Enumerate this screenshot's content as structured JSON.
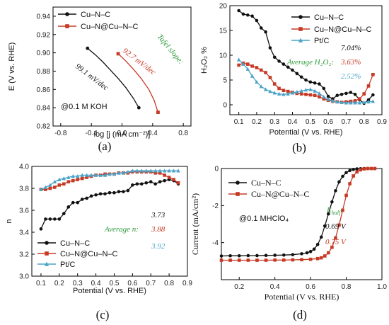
{
  "colors": {
    "cu_n_c": "#111111",
    "cu_n_cu_n_c": "#c63a26",
    "pt_c": "#4aa3c6",
    "tafel_label": "#2e9a3a",
    "average_label": "#2e9a3a",
    "ehalf_label": "#2e9a3a"
  },
  "panel_labels": [
    "(a)",
    "(b)",
    "(c)",
    "(d)"
  ],
  "chart_data": [
    {
      "panel": "(a)",
      "type": "line",
      "xlabel": "log [j (mA cm⁻²)]",
      "ylabel": "E (V vs. RHE)",
      "xlim": [
        -0.9,
        0.9
      ],
      "ylim": [
        0.82,
        0.95
      ],
      "xticks": [
        "-0.8",
        "-0.4",
        "0.0",
        "0.4",
        "0.8"
      ],
      "yticks": [
        "0.82",
        "0.84",
        "0.86",
        "0.88",
        "0.90",
        "0.92",
        "0.94"
      ],
      "legend": [
        "Cu–N–C",
        "Cu–N@Cu–N–C"
      ],
      "legend_position": "top-left",
      "note": "@0.1 M KOH",
      "annotation_title": "Tafel slope:",
      "annotations": [
        "99.1 mV/dec",
        "92.7 mV/dec"
      ],
      "series": [
        {
          "name": "Cu–N–C",
          "x": [
            -0.45,
            -0.35,
            -0.25,
            -0.15,
            -0.05,
            0.05,
            0.15,
            0.22
          ],
          "y": [
            0.905,
            0.898,
            0.89,
            0.881,
            0.872,
            0.862,
            0.85,
            0.84
          ]
        },
        {
          "name": "Cu–N@Cu–N–C",
          "x": [
            -0.05,
            0.05,
            0.15,
            0.25,
            0.35,
            0.42,
            0.47
          ],
          "y": [
            0.899,
            0.891,
            0.882,
            0.872,
            0.86,
            0.848,
            0.835
          ]
        }
      ]
    },
    {
      "panel": "(b)",
      "type": "line",
      "xlabel": "Potential (V vs. RHE)",
      "ylabel": "H₂O₂ %",
      "xlim": [
        0.05,
        0.9
      ],
      "ylim": [
        -2,
        20
      ],
      "xticks": [
        "0.1",
        "0.2",
        "0.3",
        "0.4",
        "0.5",
        "0.6",
        "0.7",
        "0.8",
        "0.9"
      ],
      "yticks": [
        "0",
        "5",
        "10",
        "15",
        "20"
      ],
      "legend": [
        "Cu–N–C",
        "Cu–N@Cu–N–C",
        "Pt/C"
      ],
      "legend_position": "top-right",
      "annotation_title": "Average H₂O₂:",
      "annotations": [
        "7.04%",
        "3.63%",
        "2.52%"
      ],
      "series": [
        {
          "name": "Cu–N–C",
          "x": [
            0.1,
            0.125,
            0.15,
            0.175,
            0.2,
            0.225,
            0.25,
            0.275,
            0.3,
            0.325,
            0.35,
            0.375,
            0.4,
            0.425,
            0.45,
            0.475,
            0.5,
            0.525,
            0.55,
            0.575,
            0.6,
            0.625,
            0.65,
            0.675,
            0.7,
            0.725,
            0.75,
            0.775,
            0.8,
            0.825,
            0.85
          ],
          "y": [
            19.0,
            18.3,
            18.1,
            17.9,
            17.0,
            15.5,
            14.7,
            11.5,
            9.6,
            8.8,
            8.2,
            7.6,
            7.0,
            6.3,
            5.6,
            5.0,
            4.6,
            4.4,
            4.2,
            3.3,
            1.7,
            1.2,
            1.9,
            2.1,
            2.3,
            2.5,
            2.1,
            1.0,
            0.3,
            1.0,
            2.0
          ]
        },
        {
          "name": "Cu–N@Cu–N–C",
          "x": [
            0.1,
            0.125,
            0.15,
            0.175,
            0.2,
            0.225,
            0.25,
            0.275,
            0.3,
            0.325,
            0.35,
            0.375,
            0.4,
            0.425,
            0.45,
            0.475,
            0.5,
            0.525,
            0.55,
            0.575,
            0.6,
            0.625,
            0.65,
            0.675,
            0.7,
            0.725,
            0.75,
            0.775,
            0.8,
            0.825,
            0.85
          ],
          "y": [
            8.0,
            8.4,
            8.2,
            7.8,
            7.5,
            7.0,
            6.5,
            5.5,
            4.2,
            3.3,
            2.9,
            2.7,
            2.5,
            2.3,
            2.2,
            2.1,
            2.0,
            1.9,
            1.6,
            1.2,
            0.9,
            0.7,
            0.6,
            0.5,
            0.6,
            0.7,
            0.8,
            1.2,
            2.2,
            3.8,
            6.1
          ]
        },
        {
          "name": "Pt/C",
          "x": [
            0.1,
            0.125,
            0.15,
            0.175,
            0.2,
            0.225,
            0.25,
            0.275,
            0.3,
            0.325,
            0.35,
            0.375,
            0.4,
            0.425,
            0.45,
            0.475,
            0.5,
            0.525,
            0.55,
            0.575,
            0.6,
            0.625,
            0.65,
            0.675,
            0.7,
            0.725,
            0.75,
            0.775,
            0.8,
            0.825,
            0.85
          ],
          "y": [
            9.1,
            8.2,
            7.2,
            5.8,
            4.6,
            3.7,
            3.1,
            2.7,
            2.4,
            2.2,
            2.1,
            2.2,
            2.4,
            2.6,
            2.8,
            3.0,
            3.1,
            2.8,
            2.3,
            1.6,
            1.1,
            0.8,
            0.6,
            0.5,
            0.4,
            0.4,
            0.4,
            0.4,
            0.5,
            0.6,
            0.7
          ]
        }
      ]
    },
    {
      "panel": "(c)",
      "type": "line",
      "xlabel": "Potential (V vs. RHE)",
      "ylabel": "n",
      "xlim": [
        0.05,
        0.9
      ],
      "ylim": [
        3.0,
        4.0
      ],
      "xticks": [
        "0.1",
        "0.2",
        "0.3",
        "0.4",
        "0.5",
        "0.6",
        "0.7",
        "0.8",
        "0.9"
      ],
      "yticks": [
        "3.0",
        "3.2",
        "3.4",
        "3.6",
        "3.8",
        "4.0"
      ],
      "legend": [
        "Cu–N–C",
        "Cu–N@Cu–N–C",
        "Pt/C"
      ],
      "legend_position": "bottom-left",
      "annotation_title": "Average n:",
      "annotations": [
        "3.73",
        "3.88",
        "3.92"
      ],
      "series": [
        {
          "name": "Cu–N–C",
          "x": [
            0.1,
            0.125,
            0.15,
            0.175,
            0.2,
            0.225,
            0.25,
            0.275,
            0.3,
            0.325,
            0.35,
            0.375,
            0.4,
            0.425,
            0.45,
            0.475,
            0.5,
            0.525,
            0.55,
            0.575,
            0.6,
            0.625,
            0.65,
            0.675,
            0.7,
            0.725,
            0.75,
            0.775,
            0.8,
            0.825,
            0.85
          ],
          "y": [
            3.43,
            3.52,
            3.52,
            3.52,
            3.52,
            3.57,
            3.63,
            3.67,
            3.67,
            3.7,
            3.71,
            3.73,
            3.74,
            3.75,
            3.75,
            3.76,
            3.76,
            3.77,
            3.77,
            3.78,
            3.83,
            3.84,
            3.84,
            3.85,
            3.86,
            3.84,
            3.86,
            3.87,
            3.88,
            3.87,
            3.84
          ]
        },
        {
          "name": "Cu–N@Cu–N–C",
          "x": [
            0.1,
            0.125,
            0.15,
            0.175,
            0.2,
            0.225,
            0.25,
            0.275,
            0.3,
            0.325,
            0.35,
            0.375,
            0.4,
            0.425,
            0.45,
            0.475,
            0.5,
            0.525,
            0.55,
            0.575,
            0.6,
            0.625,
            0.65,
            0.675,
            0.7,
            0.725,
            0.75,
            0.775,
            0.8,
            0.825,
            0.85
          ],
          "y": [
            3.79,
            3.79,
            3.8,
            3.81,
            3.83,
            3.84,
            3.86,
            3.87,
            3.88,
            3.89,
            3.9,
            3.91,
            3.92,
            3.92,
            3.93,
            3.93,
            3.93,
            3.94,
            3.94,
            3.94,
            3.95,
            3.95,
            3.95,
            3.95,
            3.95,
            3.94,
            3.94,
            3.92,
            3.9,
            3.88,
            3.85
          ]
        },
        {
          "name": "Pt/C",
          "x": [
            0.1,
            0.125,
            0.15,
            0.175,
            0.2,
            0.225,
            0.25,
            0.275,
            0.3,
            0.325,
            0.35,
            0.375,
            0.4,
            0.425,
            0.45,
            0.475,
            0.5,
            0.525,
            0.55,
            0.575,
            0.6,
            0.625,
            0.65,
            0.675,
            0.7,
            0.725,
            0.75,
            0.775,
            0.8,
            0.825,
            0.85
          ],
          "y": [
            3.79,
            3.81,
            3.83,
            3.86,
            3.88,
            3.89,
            3.9,
            3.91,
            3.91,
            3.92,
            3.92,
            3.92,
            3.92,
            3.92,
            3.92,
            3.93,
            3.93,
            3.94,
            3.94,
            3.95,
            3.96,
            3.96,
            3.96,
            3.96,
            3.96,
            3.96,
            3.96,
            3.96,
            3.96,
            3.96,
            3.96
          ]
        }
      ]
    },
    {
      "panel": "(d)",
      "type": "line",
      "xlabel": "Potential (V vs. RHE)",
      "ylabel": "Current (mA/cm²)",
      "xlim": [
        0.1,
        1.0
      ],
      "ylim": [
        -6,
        0
      ],
      "xticks": [
        "0.2",
        "0.4",
        "0.6",
        "0.8",
        "1.0"
      ],
      "yticks": [
        "0",
        "-2",
        "-4"
      ],
      "legend": [
        "Cu–N–C",
        "Cu–N@Cu–N–C"
      ],
      "legend_position": "top-left",
      "note": "@0.1 MHClO₄",
      "annotation_title": "E",
      "annotation_title_subscript": "half",
      "annotation_title_suffix": ":",
      "annotations": [
        "0.69 V",
        "0.75 V"
      ],
      "series": [
        {
          "name": "Cu–N–C",
          "x": [
            0.1,
            0.15,
            0.2,
            0.25,
            0.3,
            0.35,
            0.4,
            0.45,
            0.5,
            0.55,
            0.58,
            0.6,
            0.62,
            0.64,
            0.66,
            0.68,
            0.7,
            0.72,
            0.74,
            0.76,
            0.78,
            0.8,
            0.82,
            0.84,
            0.86,
            0.88,
            0.9,
            0.92,
            0.94,
            0.96
          ],
          "y": [
            -4.72,
            -4.71,
            -4.71,
            -4.7,
            -4.7,
            -4.69,
            -4.68,
            -4.67,
            -4.65,
            -4.6,
            -4.55,
            -4.48,
            -4.35,
            -4.1,
            -3.7,
            -3.1,
            -2.45,
            -1.8,
            -1.2,
            -0.72,
            -0.42,
            -0.22,
            -0.11,
            -0.05,
            -0.02,
            -0.01,
            0.0,
            0.0,
            0.0,
            0.0
          ]
        },
        {
          "name": "Cu–N@Cu–N–C",
          "x": [
            0.1,
            0.15,
            0.2,
            0.25,
            0.3,
            0.35,
            0.4,
            0.45,
            0.5,
            0.55,
            0.6,
            0.64,
            0.66,
            0.68,
            0.7,
            0.72,
            0.74,
            0.76,
            0.78,
            0.8,
            0.82,
            0.84,
            0.86,
            0.88,
            0.9,
            0.92,
            0.94,
            0.96
          ],
          "y": [
            -4.95,
            -4.95,
            -4.95,
            -4.95,
            -4.95,
            -4.95,
            -4.94,
            -4.94,
            -4.93,
            -4.92,
            -4.9,
            -4.86,
            -4.82,
            -4.72,
            -4.55,
            -4.25,
            -3.75,
            -3.05,
            -2.25,
            -1.45,
            -0.82,
            -0.4,
            -0.18,
            -0.07,
            -0.02,
            0.0,
            0.0,
            0.0
          ]
        }
      ]
    }
  ]
}
